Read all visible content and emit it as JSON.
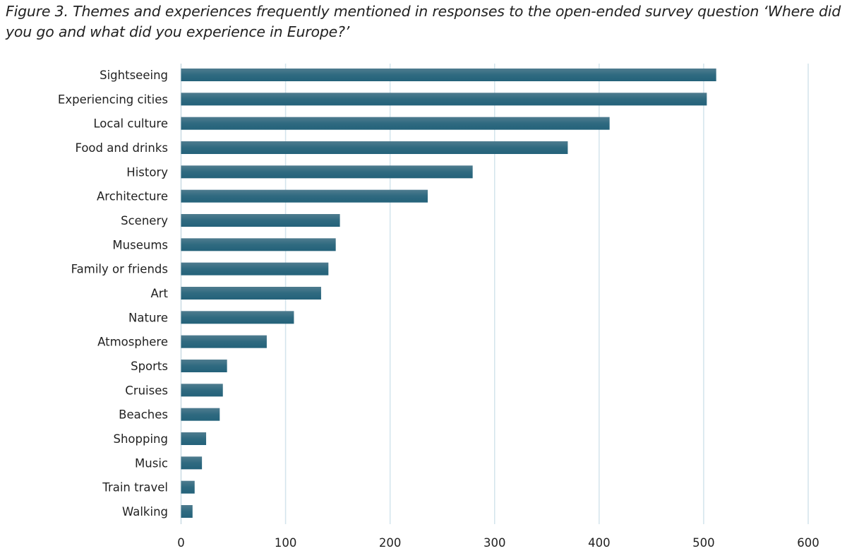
{
  "chart_data": {
    "type": "bar",
    "orientation": "horizontal",
    "title": "Figure 3. Themes and experiences frequently mentioned in responses to the open-ended survey question ‘Where did you go and what did you experience in Europe?’",
    "categories": [
      "Sightseeing",
      "Experiencing cities",
      "Local culture",
      "Food and drinks",
      "History",
      "Architecture",
      "Scenery",
      "Museums",
      "Family or friends",
      "Art",
      "Nature",
      "Atmosphere",
      "Sports",
      "Cruises",
      "Beaches",
      "Shopping",
      "Music",
      "Train travel",
      "Walking"
    ],
    "values": [
      512,
      503,
      410,
      370,
      279,
      236,
      152,
      148,
      141,
      134,
      108,
      82,
      44,
      40,
      37,
      24,
      20,
      13,
      11
    ],
    "xlim": [
      0,
      600
    ],
    "xticks": [
      "0",
      "100",
      "200",
      "300",
      "400",
      "500",
      "600"
    ],
    "xlabel": "",
    "ylabel": "",
    "grid": "vertical",
    "legend": "none",
    "bar_color": "#2f6a80",
    "grid_color": "#d3e4ec"
  }
}
